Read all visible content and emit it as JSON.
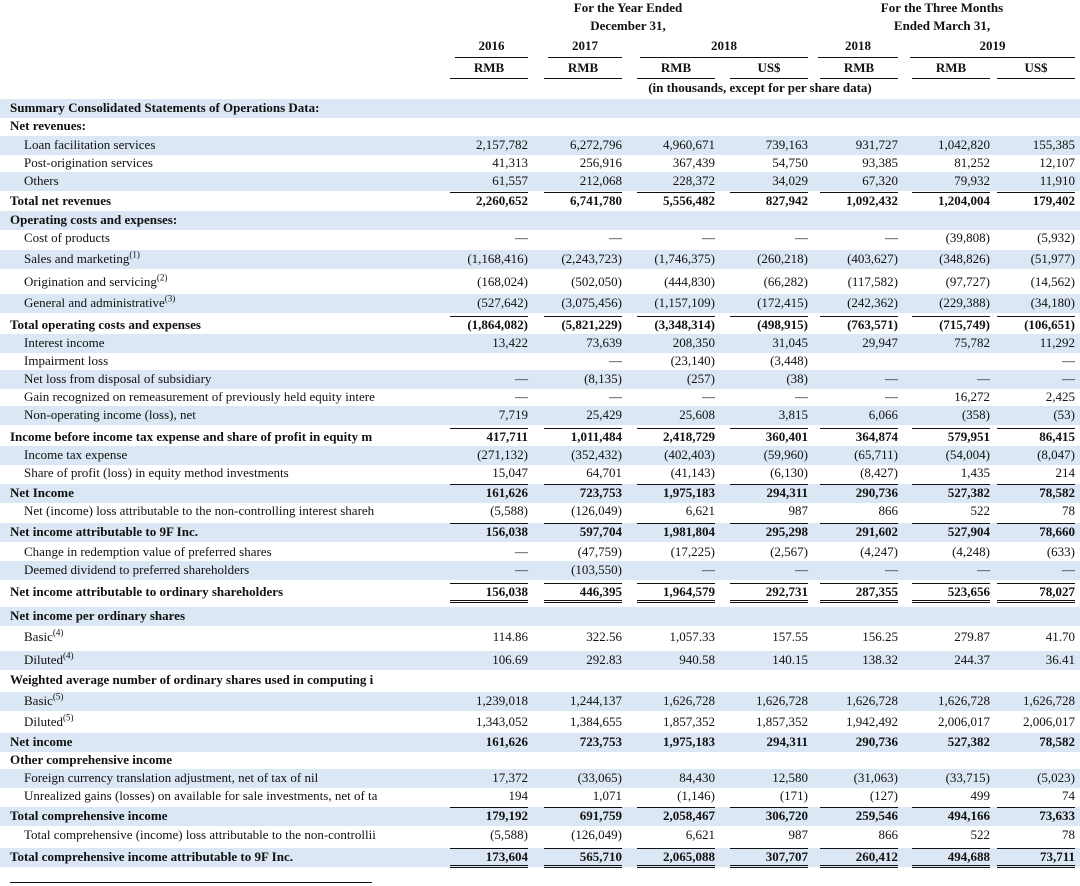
{
  "header": {
    "groups": [
      {
        "lines": [
          "For the Year Ended",
          "December 31,"
        ]
      },
      {
        "lines": [
          "For the Three Months",
          "Ended March 31,"
        ]
      }
    ],
    "years": [
      "2016",
      "2017",
      "2018",
      "2018",
      "2019"
    ],
    "currencies": [
      "RMB",
      "RMB",
      "RMB",
      "US$",
      "RMB",
      "RMB",
      "US$"
    ],
    "note": "(in thousands, except for per share data)"
  },
  "rows": [
    {
      "label": "Summary Consolidated Statements of Operations Data:",
      "bold": true
    },
    {
      "label": "Net revenues:",
      "bold": true
    },
    {
      "label": "Loan facilitation services",
      "indent": true,
      "values": [
        "2,157,782",
        "6,272,796",
        "4,960,671",
        "739,163",
        "931,727",
        "1,042,820",
        "155,385"
      ]
    },
    {
      "label": "Post-origination services",
      "indent": true,
      "values": [
        "41,313",
        "256,916",
        "367,439",
        "54,750",
        "93,385",
        "81,252",
        "12,107"
      ]
    },
    {
      "label": "Others",
      "indent": true,
      "values": [
        "61,557",
        "212,068",
        "228,372",
        "34,029",
        "67,320",
        "79,932",
        "11,910"
      ]
    },
    {
      "label": "Total net revenues",
      "bold": true,
      "values": [
        "2,260,652",
        "6,741,780",
        "5,556,482",
        "827,942",
        "1,092,432",
        "1,204,004",
        "179,402"
      ]
    },
    {
      "label": "Operating costs and expenses:",
      "bold": true
    },
    {
      "label": "Cost of products",
      "indent": true,
      "values": [
        "—",
        "—",
        "—",
        "—",
        "—",
        "(39,808)",
        "(5,932)"
      ]
    },
    {
      "label": "Sales and marketing",
      "sup": "(1)",
      "indent": true,
      "values": [
        "(1,168,416)",
        "(2,243,723)",
        "(1,746,375)",
        "(260,218)",
        "(403,627)",
        "(348,826)",
        "(51,977)"
      ]
    },
    {
      "label": "Origination and servicing",
      "sup": "(2)",
      "indent": true,
      "values": [
        "(168,024)",
        "(502,050)",
        "(444,830)",
        "(66,282)",
        "(117,582)",
        "(97,727)",
        "(14,562)"
      ]
    },
    {
      "label": "General and administrative",
      "sup": "(3)",
      "indent": true,
      "values": [
        "(527,642)",
        "(3,075,456)",
        "(1,157,109)",
        "(172,415)",
        "(242,362)",
        "(229,388)",
        "(34,180)"
      ]
    },
    {
      "label": "Total operating costs and expenses",
      "bold": true,
      "values": [
        "(1,864,082)",
        "(5,821,229)",
        "(3,348,314)",
        "(498,915)",
        "(763,571)",
        "(715,749)",
        "(106,651)"
      ]
    },
    {
      "label": "Interest income",
      "indent": true,
      "values": [
        "13,422",
        "73,639",
        "208,350",
        "31,045",
        "29,947",
        "75,782",
        "11,292"
      ]
    },
    {
      "label": "Impairment loss",
      "indent": true,
      "values": [
        null,
        "—",
        "(23,140)",
        "(3,448)",
        null,
        null,
        "—"
      ]
    },
    {
      "label": "Net loss from disposal of subsidiary",
      "indent": true,
      "values": [
        "—",
        "(8,135)",
        "(257)",
        "(38)",
        "—",
        "—",
        "—"
      ]
    },
    {
      "label": "Gain recognized on remeasurement of previously held equity intere",
      "indent": true,
      "values": [
        "—",
        "—",
        "—",
        "—",
        "—",
        "16,272",
        "2,425"
      ]
    },
    {
      "label": "Non-operating income (loss), net",
      "indent": true,
      "values": [
        "7,719",
        "25,429",
        "25,608",
        "3,815",
        "6,066",
        "(358)",
        "(53)"
      ]
    },
    {
      "label": "Income before income tax expense and share of profit in equity m",
      "bold": true,
      "values": [
        "417,711",
        "1,011,484",
        "2,418,729",
        "360,401",
        "364,874",
        "579,951",
        "86,415"
      ]
    },
    {
      "label": "Income tax expense",
      "indent": true,
      "values": [
        "(271,132)",
        "(352,432)",
        "(402,403)",
        "(59,960)",
        "(65,711)",
        "(54,004)",
        "(8,047)"
      ]
    },
    {
      "label": "Share of profit (loss) in equity method investments",
      "indent": true,
      "values": [
        "15,047",
        "64,701",
        "(41,143)",
        "(6,130)",
        "(8,427)",
        "1,435",
        "214"
      ]
    },
    {
      "label": "Net Income",
      "bold": true,
      "values": [
        "161,626",
        "723,753",
        "1,975,183",
        "294,311",
        "290,736",
        "527,382",
        "78,582"
      ]
    },
    {
      "label": "Net (income) loss attributable to the non-controlling interest shareh",
      "indent": true,
      "values": [
        "(5,588)",
        "(126,049)",
        "6,621",
        "987",
        "866",
        "522",
        "78"
      ]
    },
    {
      "label": "Net income attributable to 9F Inc.",
      "bold": true,
      "values": [
        "156,038",
        "597,704",
        "1,981,804",
        "295,298",
        "291,602",
        "527,904",
        "78,660"
      ]
    },
    {
      "label": "Change in redemption value of preferred shares",
      "indent": true,
      "values": [
        "—",
        "(47,759)",
        "(17,225)",
        "(2,567)",
        "(4,247)",
        "(4,248)",
        "(633)"
      ]
    },
    {
      "label": "Deemed dividend to preferred shareholders",
      "indent": true,
      "values": [
        "—",
        "(103,550)",
        "—",
        "—",
        "—",
        "—",
        "—"
      ]
    },
    {
      "label": "Net income attributable to ordinary shareholders",
      "bold": true,
      "values": [
        "156,038",
        "446,395",
        "1,964,579",
        "292,731",
        "287,355",
        "523,656",
        "78,027"
      ]
    },
    {
      "label": "Net income per ordinary shares",
      "bold": true
    },
    {
      "label": "Basic",
      "sup": "(4)",
      "indent": true,
      "values": [
        "114.86",
        "322.56",
        "1,057.33",
        "157.55",
        "156.25",
        "279.87",
        "41.70"
      ]
    },
    {
      "label": "Diluted",
      "sup": "(4)",
      "indent": true,
      "values": [
        "106.69",
        "292.83",
        "940.58",
        "140.15",
        "138.32",
        "244.37",
        "36.41"
      ]
    },
    {
      "label": "Weighted average number of ordinary shares used in computing i",
      "bold": true
    },
    {
      "label": "Basic",
      "sup": "(5)",
      "indent": true,
      "values": [
        "1,239,018",
        "1,244,137",
        "1,626,728",
        "1,626,728",
        "1,626,728",
        "1,626,728",
        "1,626,728"
      ]
    },
    {
      "label": "Diluted",
      "sup": "(5)",
      "indent": true,
      "values": [
        "1,343,052",
        "1,384,655",
        "1,857,352",
        "1,857,352",
        "1,942,492",
        "2,006,017",
        "2,006,017"
      ]
    },
    {
      "label": "Net income",
      "bold": true,
      "values": [
        "161,626",
        "723,753",
        "1,975,183",
        "294,311",
        "290,736",
        "527,382",
        "78,582"
      ]
    },
    {
      "label": "Other comprehensive income",
      "bold": true
    },
    {
      "label": "Foreign currency translation adjustment, net of tax of nil",
      "indent": true,
      "values": [
        "17,372",
        "(33,065)",
        "84,430",
        "12,580",
        "(31,063)",
        "(33,715)",
        "(5,023)"
      ]
    },
    {
      "label": "Unrealized gains (losses) on available for sale investments, net of ta",
      "indent": true,
      "values": [
        "194",
        "1,071",
        "(1,146)",
        "(171)",
        "(127)",
        "499",
        "74"
      ]
    },
    {
      "label": "Total comprehensive income",
      "bold": true,
      "values": [
        "179,192",
        "691,759",
        "2,058,467",
        "306,720",
        "259,546",
        "494,166",
        "73,633"
      ]
    },
    {
      "label": "Total comprehensive (income) loss attributable to the non-controllii",
      "indent": true,
      "values": [
        "(5,588)",
        "(126,049)",
        "6,621",
        "987",
        "866",
        "522",
        "78"
      ]
    },
    {
      "label": "Total comprehensive income attributable to 9F Inc.",
      "bold": true,
      "values": [
        "173,604",
        "565,710",
        "2,065,088",
        "307,707",
        "260,412",
        "494,688",
        "73,711"
      ]
    }
  ]
}
